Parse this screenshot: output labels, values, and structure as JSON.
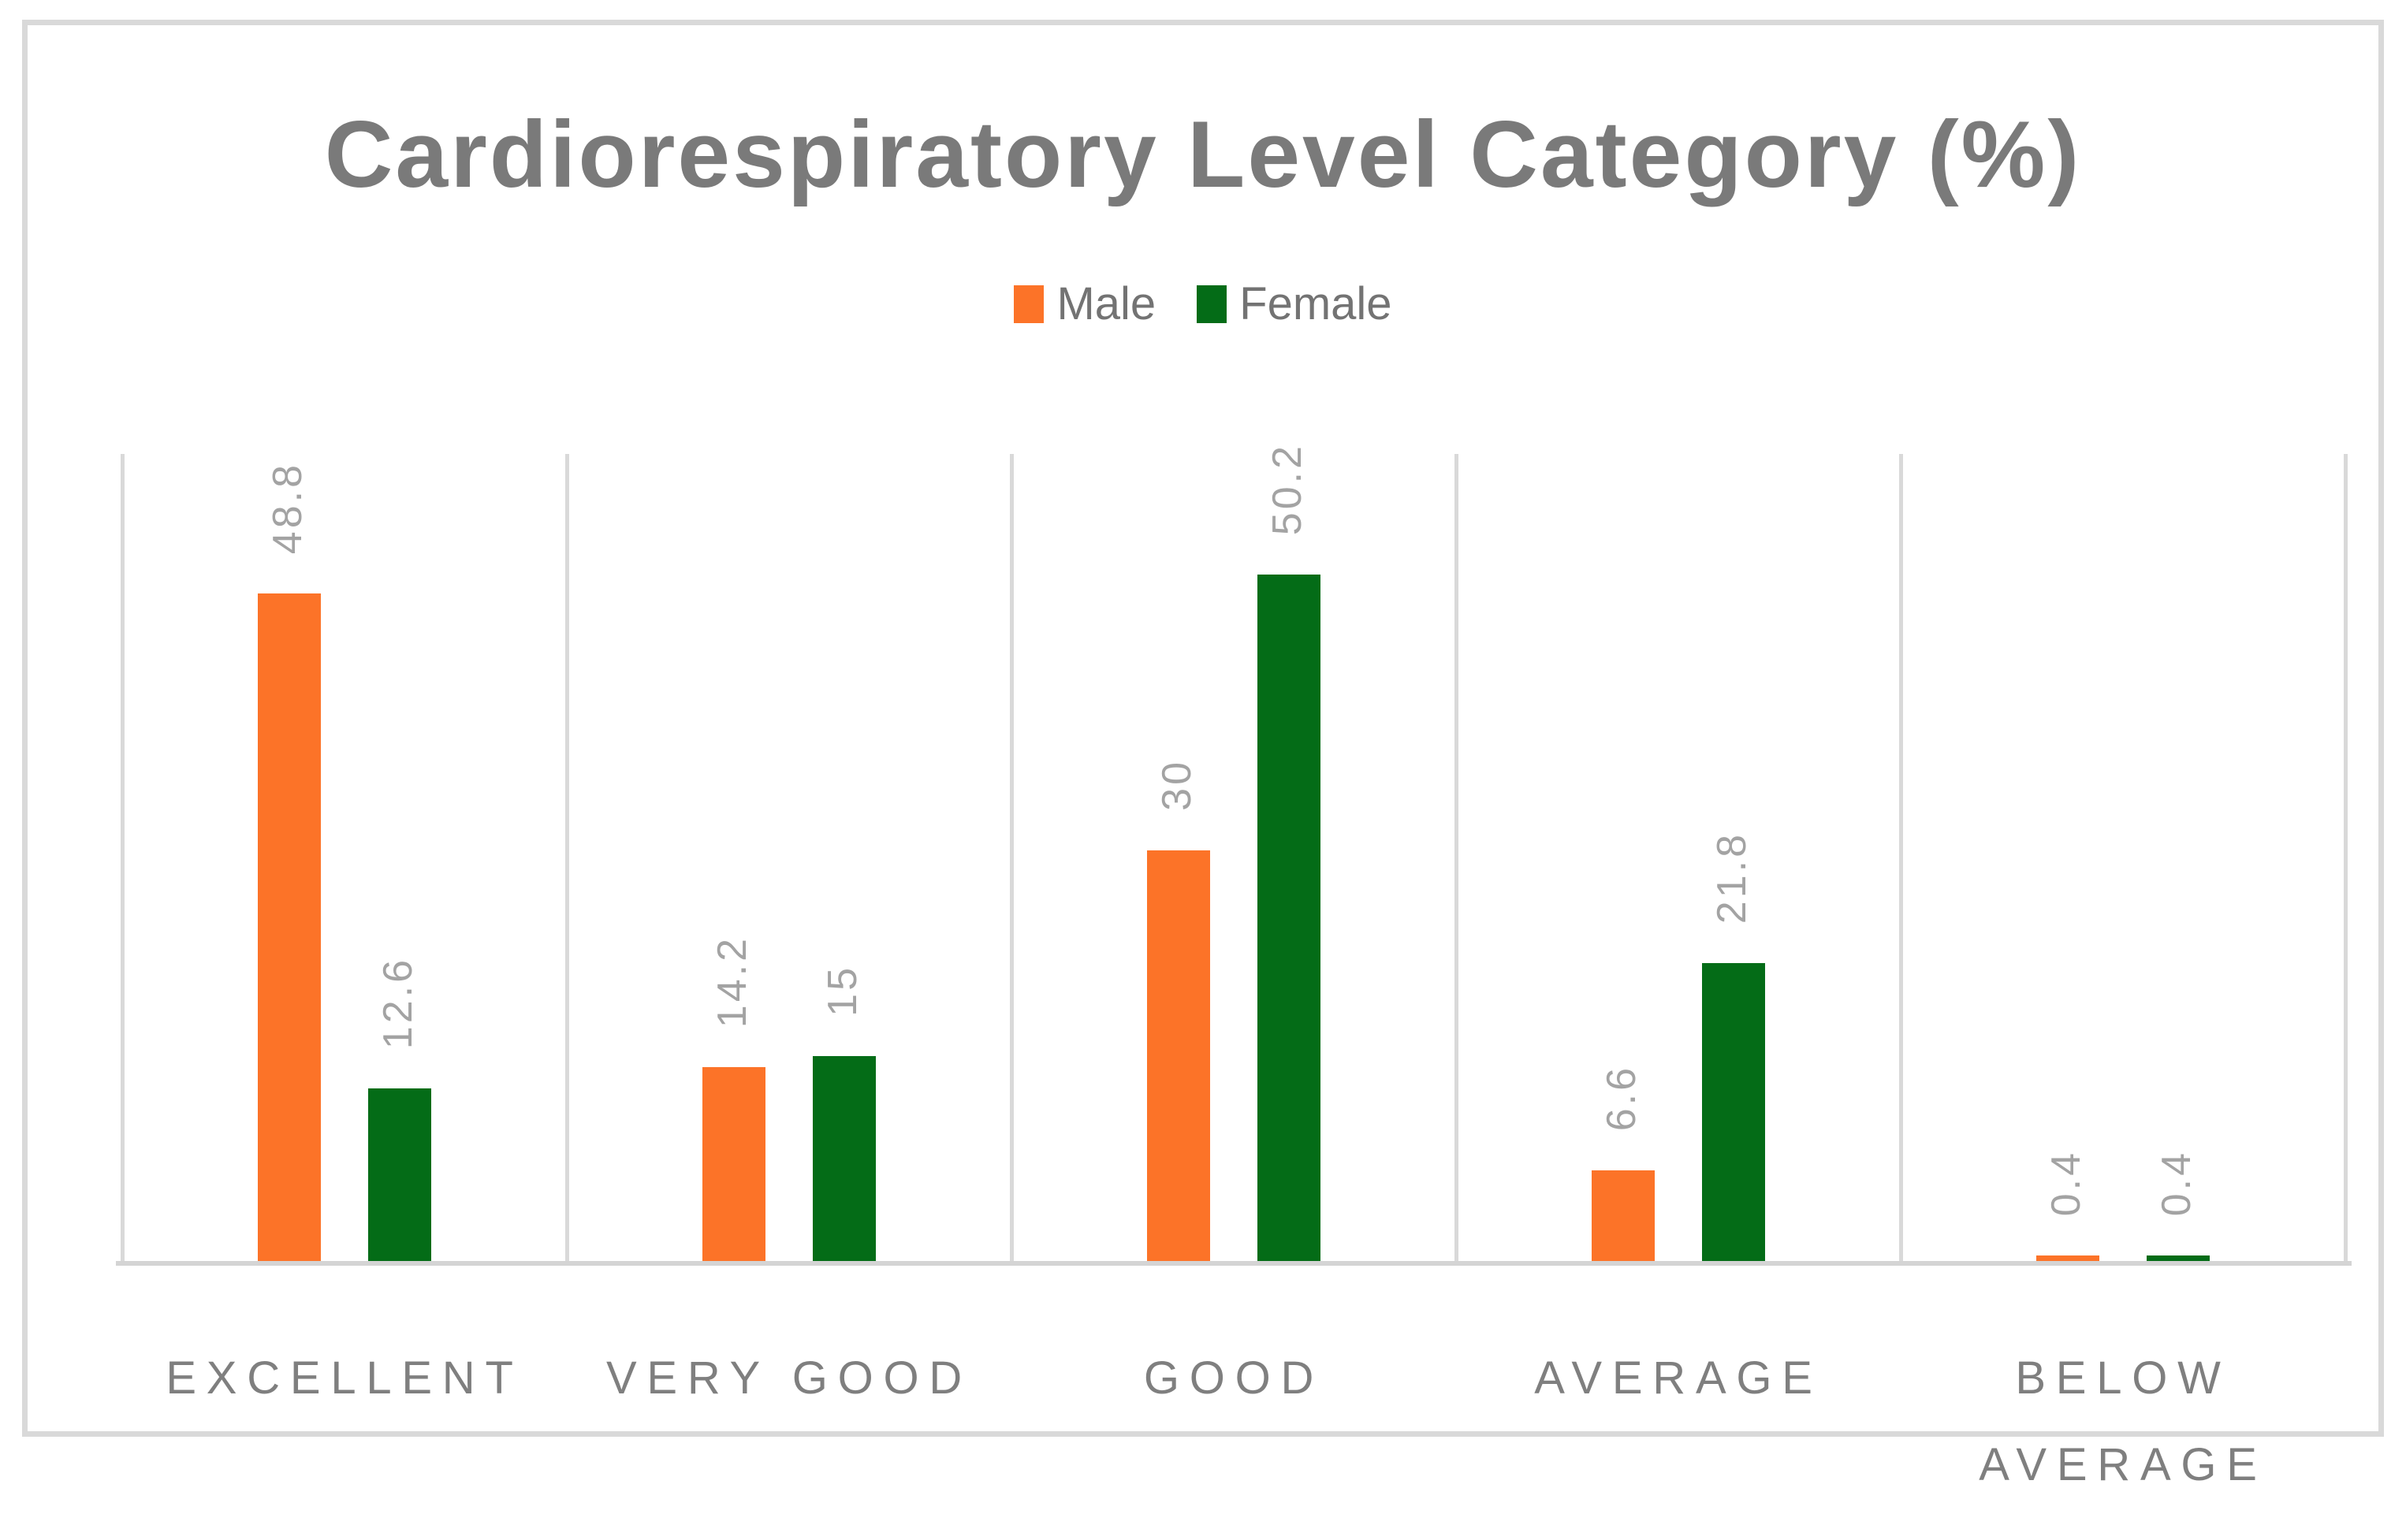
{
  "title": "Cardiorespiratory Level Category (%)",
  "legend": {
    "male_label": "Male",
    "female_label": "Female"
  },
  "colors": {
    "male": "#FC7328",
    "female": "#046C17",
    "gridline": "#D9D9D9",
    "axis_line": "#D4D4D4",
    "title_text": "#7A7A7A",
    "label_text": "#A3A3A3",
    "category_text": "#7F7F7F",
    "frame_border": "#D9D9D9"
  },
  "chart_data": {
    "type": "bar",
    "title": "Cardiorespiratory Level Category (%)",
    "categories": [
      "EXCELLENT",
      "VERY GOOD",
      "GOOD",
      "AVERAGE",
      "BELOW AVERAGE"
    ],
    "series": [
      {
        "name": "Male",
        "color": "#FC7328",
        "values": [
          48.8,
          14.2,
          30,
          6.6,
          0.4
        ],
        "labels": [
          "48.8",
          "14.2",
          "30",
          "6.6",
          "0.4"
        ]
      },
      {
        "name": "Female",
        "color": "#046C17",
        "values": [
          12.6,
          15,
          50.2,
          21.8,
          0.4
        ],
        "labels": [
          "12.6",
          "15",
          "50.2",
          "21.8",
          "0.4"
        ]
      }
    ],
    "xlabel": "",
    "ylabel": "",
    "ylim": [
      0,
      59
    ],
    "grid": "vertical category separators only",
    "legend_position": "top",
    "data_label_rotation": "90deg (reads bottom to top)"
  }
}
